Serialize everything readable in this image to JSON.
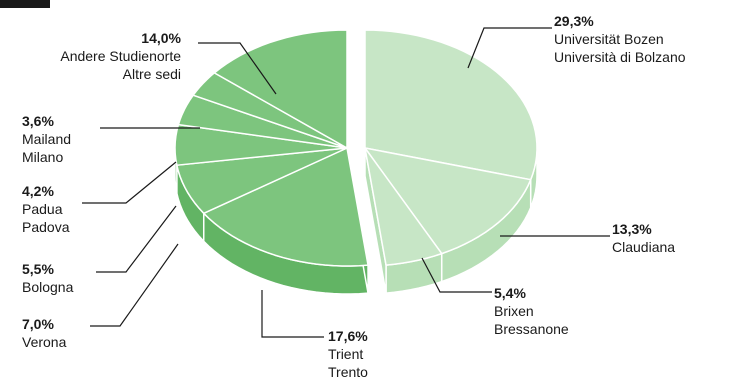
{
  "chart_data": {
    "type": "pie",
    "title": "",
    "slices": [
      {
        "label_lines": [
          "Universität Bozen",
          "Università di Bolzano"
        ],
        "value": 29.3,
        "value_label": "29,3%",
        "exploded": true
      },
      {
        "label_lines": [
          "Claudiana"
        ],
        "value": 13.3,
        "value_label": "13,3%",
        "exploded": true
      },
      {
        "label_lines": [
          "Brixen",
          "Bressanone"
        ],
        "value": 5.4,
        "value_label": "5,4%",
        "exploded": true
      },
      {
        "label_lines": [
          "Trient",
          "Trento"
        ],
        "value": 17.6,
        "value_label": "17,6%",
        "exploded": false
      },
      {
        "label_lines": [
          "Verona"
        ],
        "value": 7.0,
        "value_label": "7,0%",
        "exploded": false
      },
      {
        "label_lines": [
          "Bologna"
        ],
        "value": 5.5,
        "value_label": "5,5%",
        "exploded": false
      },
      {
        "label_lines": [
          "Padua",
          "Padova"
        ],
        "value": 4.2,
        "value_label": "4,2%",
        "exploded": false
      },
      {
        "label_lines": [
          "Mailand",
          "Milano"
        ],
        "value": 3.6,
        "value_label": "3,6%",
        "exploded": false
      },
      {
        "label_lines": [
          "Andere Studienorte",
          "Altre sedi"
        ],
        "value": 14.0,
        "value_label": "14,0%",
        "exploded": false
      }
    ],
    "colors": {
      "exploded_top": "#c7e6c6",
      "exploded_side": "#b7dfb6",
      "main_top": "#7dc57e",
      "main_side": "#62b464",
      "edge": "#ffffff",
      "leader": "#1a1a1a",
      "corner_bar": "#1a1a1a"
    }
  }
}
